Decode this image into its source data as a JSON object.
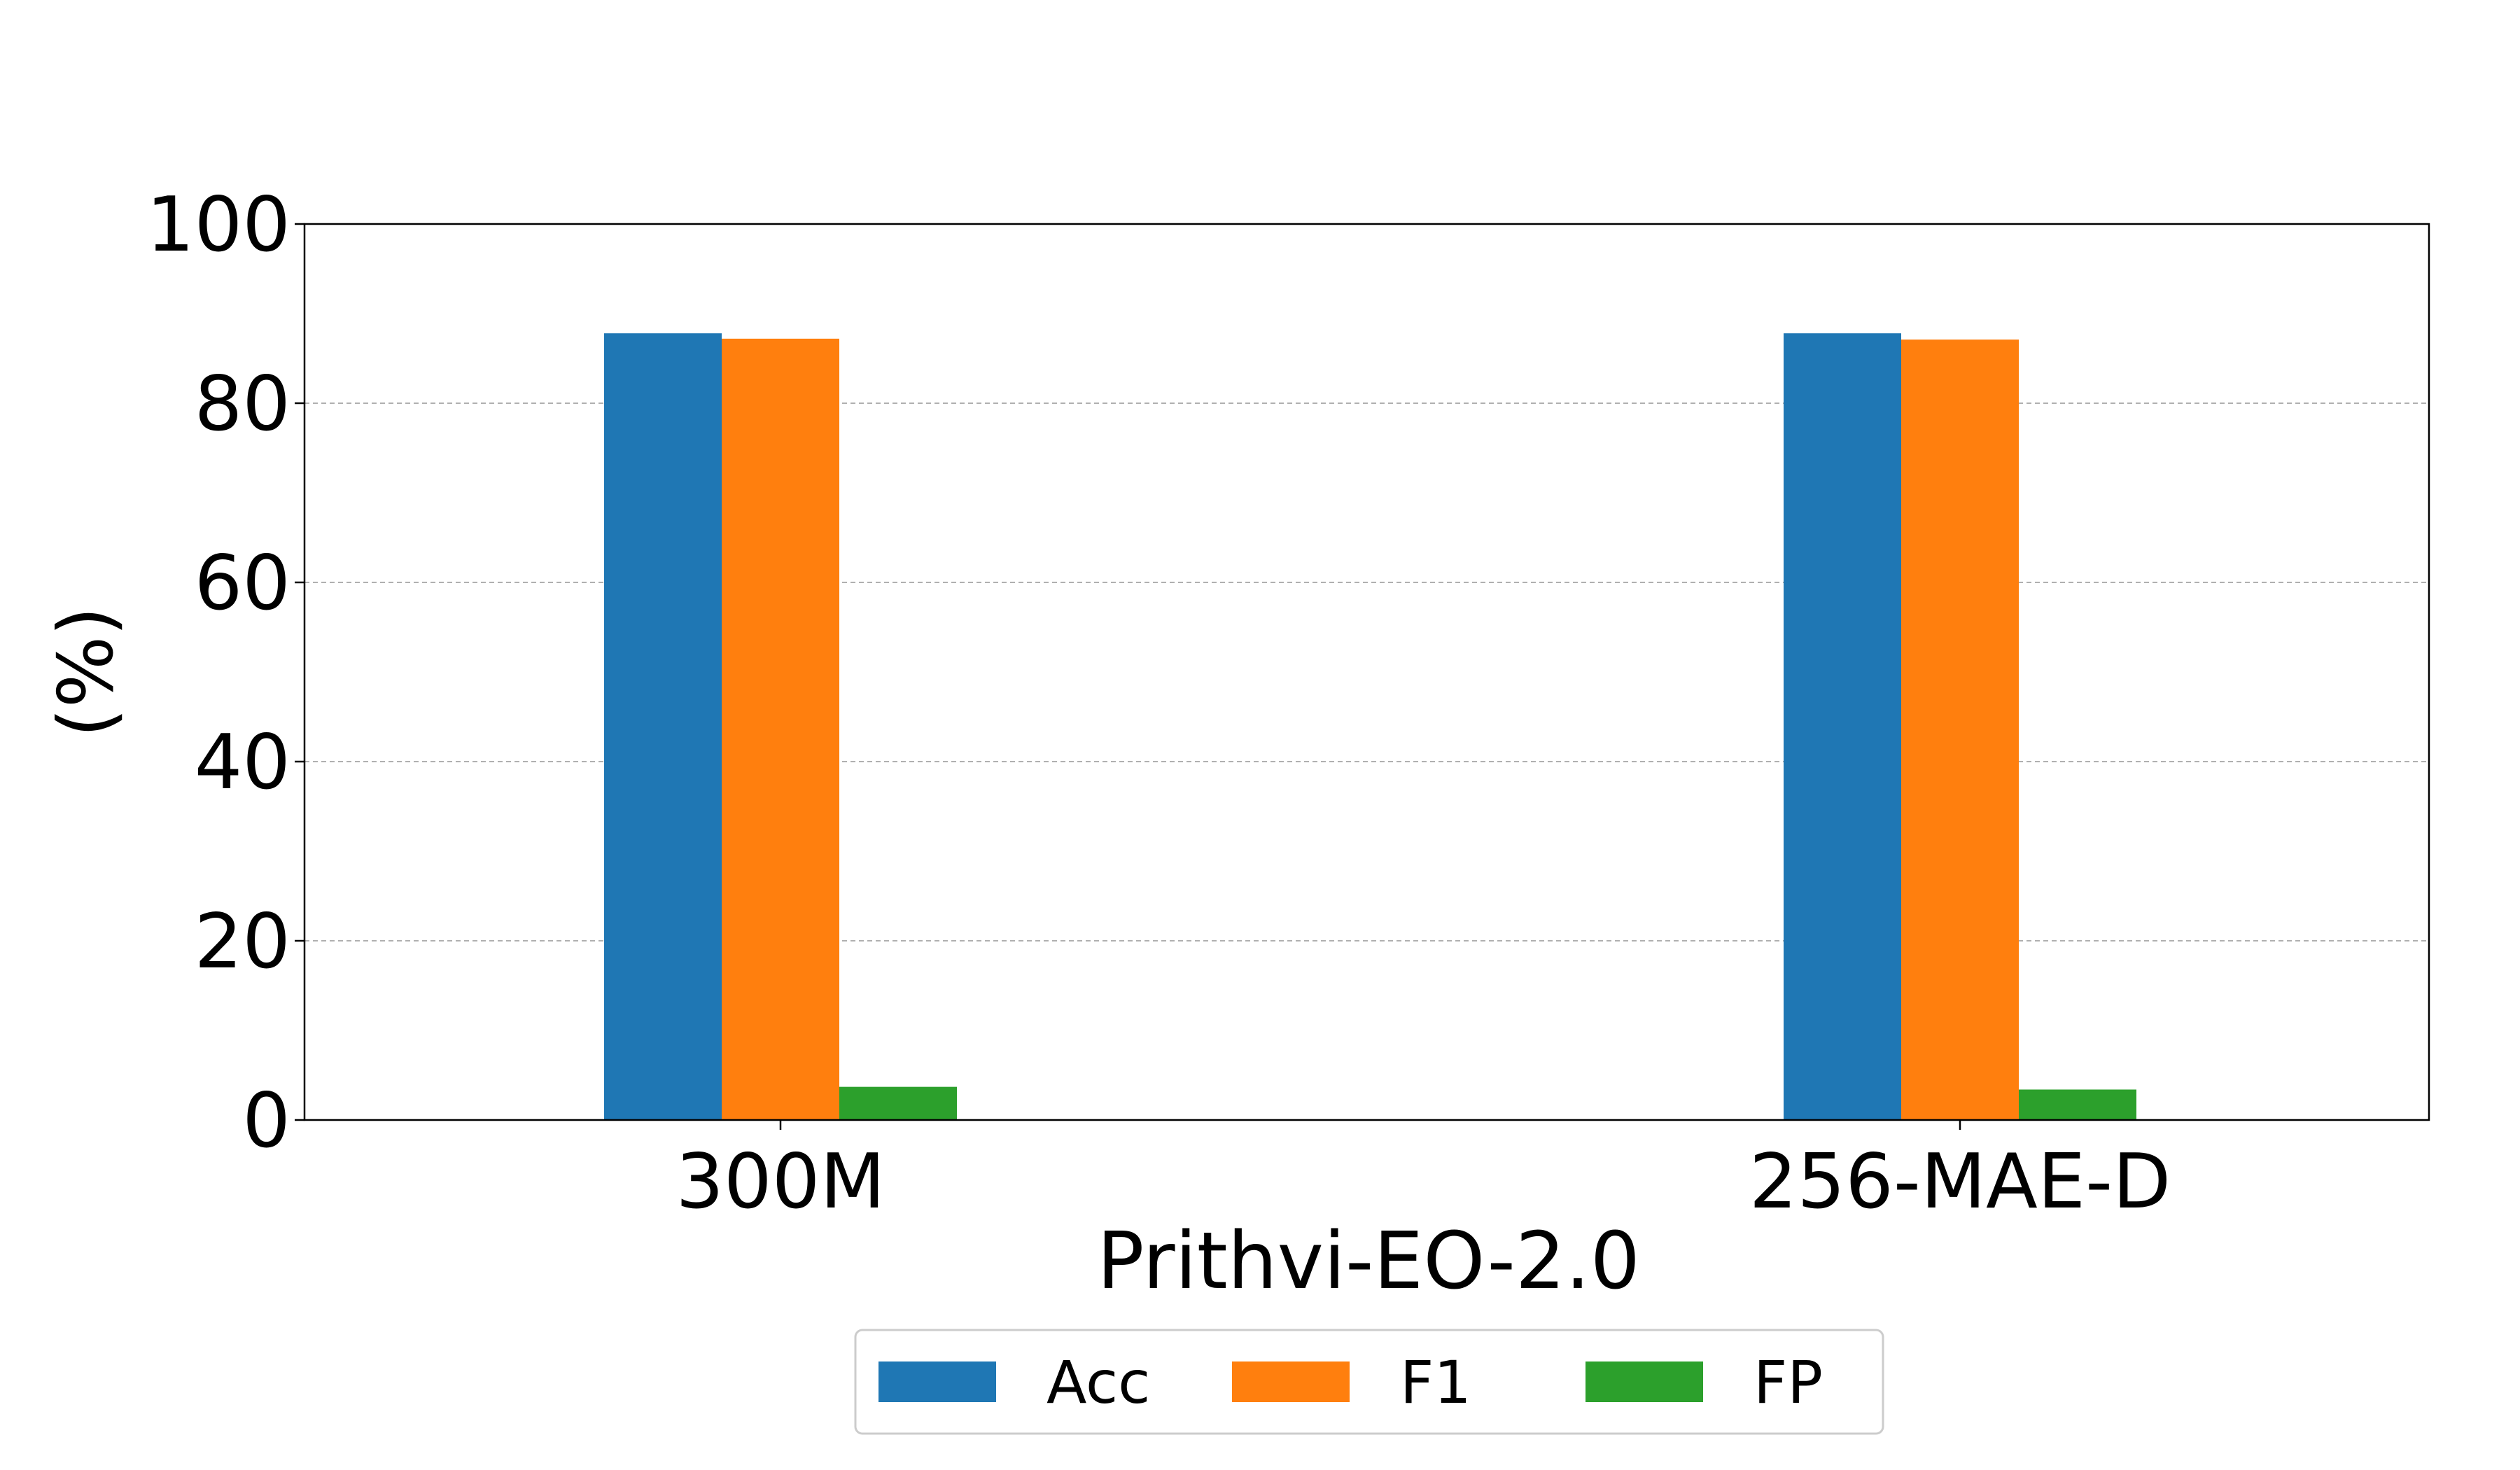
{
  "chart_data": {
    "type": "bar",
    "title": "",
    "xlabel": "Prithvi-EO-2.0",
    "ylabel": "(%)",
    "categories": [
      "300M",
      "256-MAE-D"
    ],
    "series": [
      {
        "name": "Acc",
        "color": "#1f77b4",
        "values": [
          87.8,
          87.8
        ]
      },
      {
        "name": "F1",
        "color": "#ff7f0e",
        "values": [
          87.2,
          87.1
        ]
      },
      {
        "name": "FP",
        "color": "#2ca02c",
        "values": [
          3.7,
          3.4
        ]
      }
    ],
    "ylim": [
      0,
      100
    ],
    "yticks": [
      "0",
      "20",
      "40",
      "60",
      "80",
      "100"
    ],
    "grid": "y-dashed",
    "legend_position": "bottom-center"
  }
}
